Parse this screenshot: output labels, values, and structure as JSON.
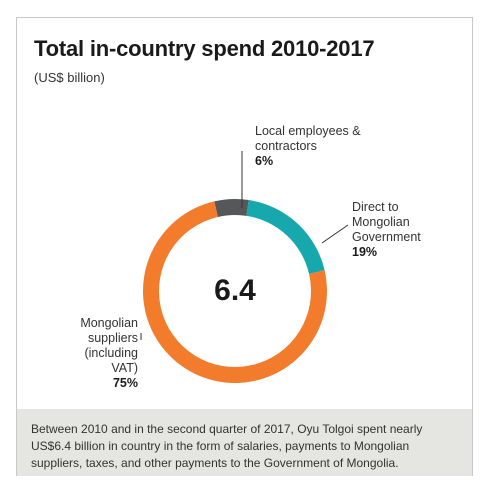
{
  "title": "Total in-country spend 2010-2017",
  "subtitle": "(US$ billion)",
  "center_value": "6.4",
  "footer_text": "Between 2010 and in the second quarter of 2017, Oyu Tolgoi spent nearly US$6.4 billion in country in the form of salaries, payments to Mongolian suppliers, taxes, and other payments to the Government of Mongolia.",
  "chart_data": {
    "type": "pie",
    "subtype": "donut",
    "title": "Total in-country spend 2010-2017",
    "subtitle": "(US$ billion)",
    "total": 6.4,
    "slices": [
      {
        "name": "Local employees & contractors",
        "label_lines": [
          "Local employees &",
          "contractors"
        ],
        "percent_label": "6%",
        "value": 6,
        "color": "#555759"
      },
      {
        "name": "Direct to Mongolian Government",
        "label_lines": [
          "Direct to",
          "Mongolian",
          "Government"
        ],
        "percent_label": "19%",
        "value": 19,
        "color": "#17a8ad"
      },
      {
        "name": "Mongolian suppliers (including VAT)",
        "label_lines": [
          "Mongolian",
          "suppliers",
          "(including",
          "VAT)"
        ],
        "percent_label": "75%",
        "value": 75,
        "color": "#f27b2c"
      }
    ],
    "legend": false
  }
}
